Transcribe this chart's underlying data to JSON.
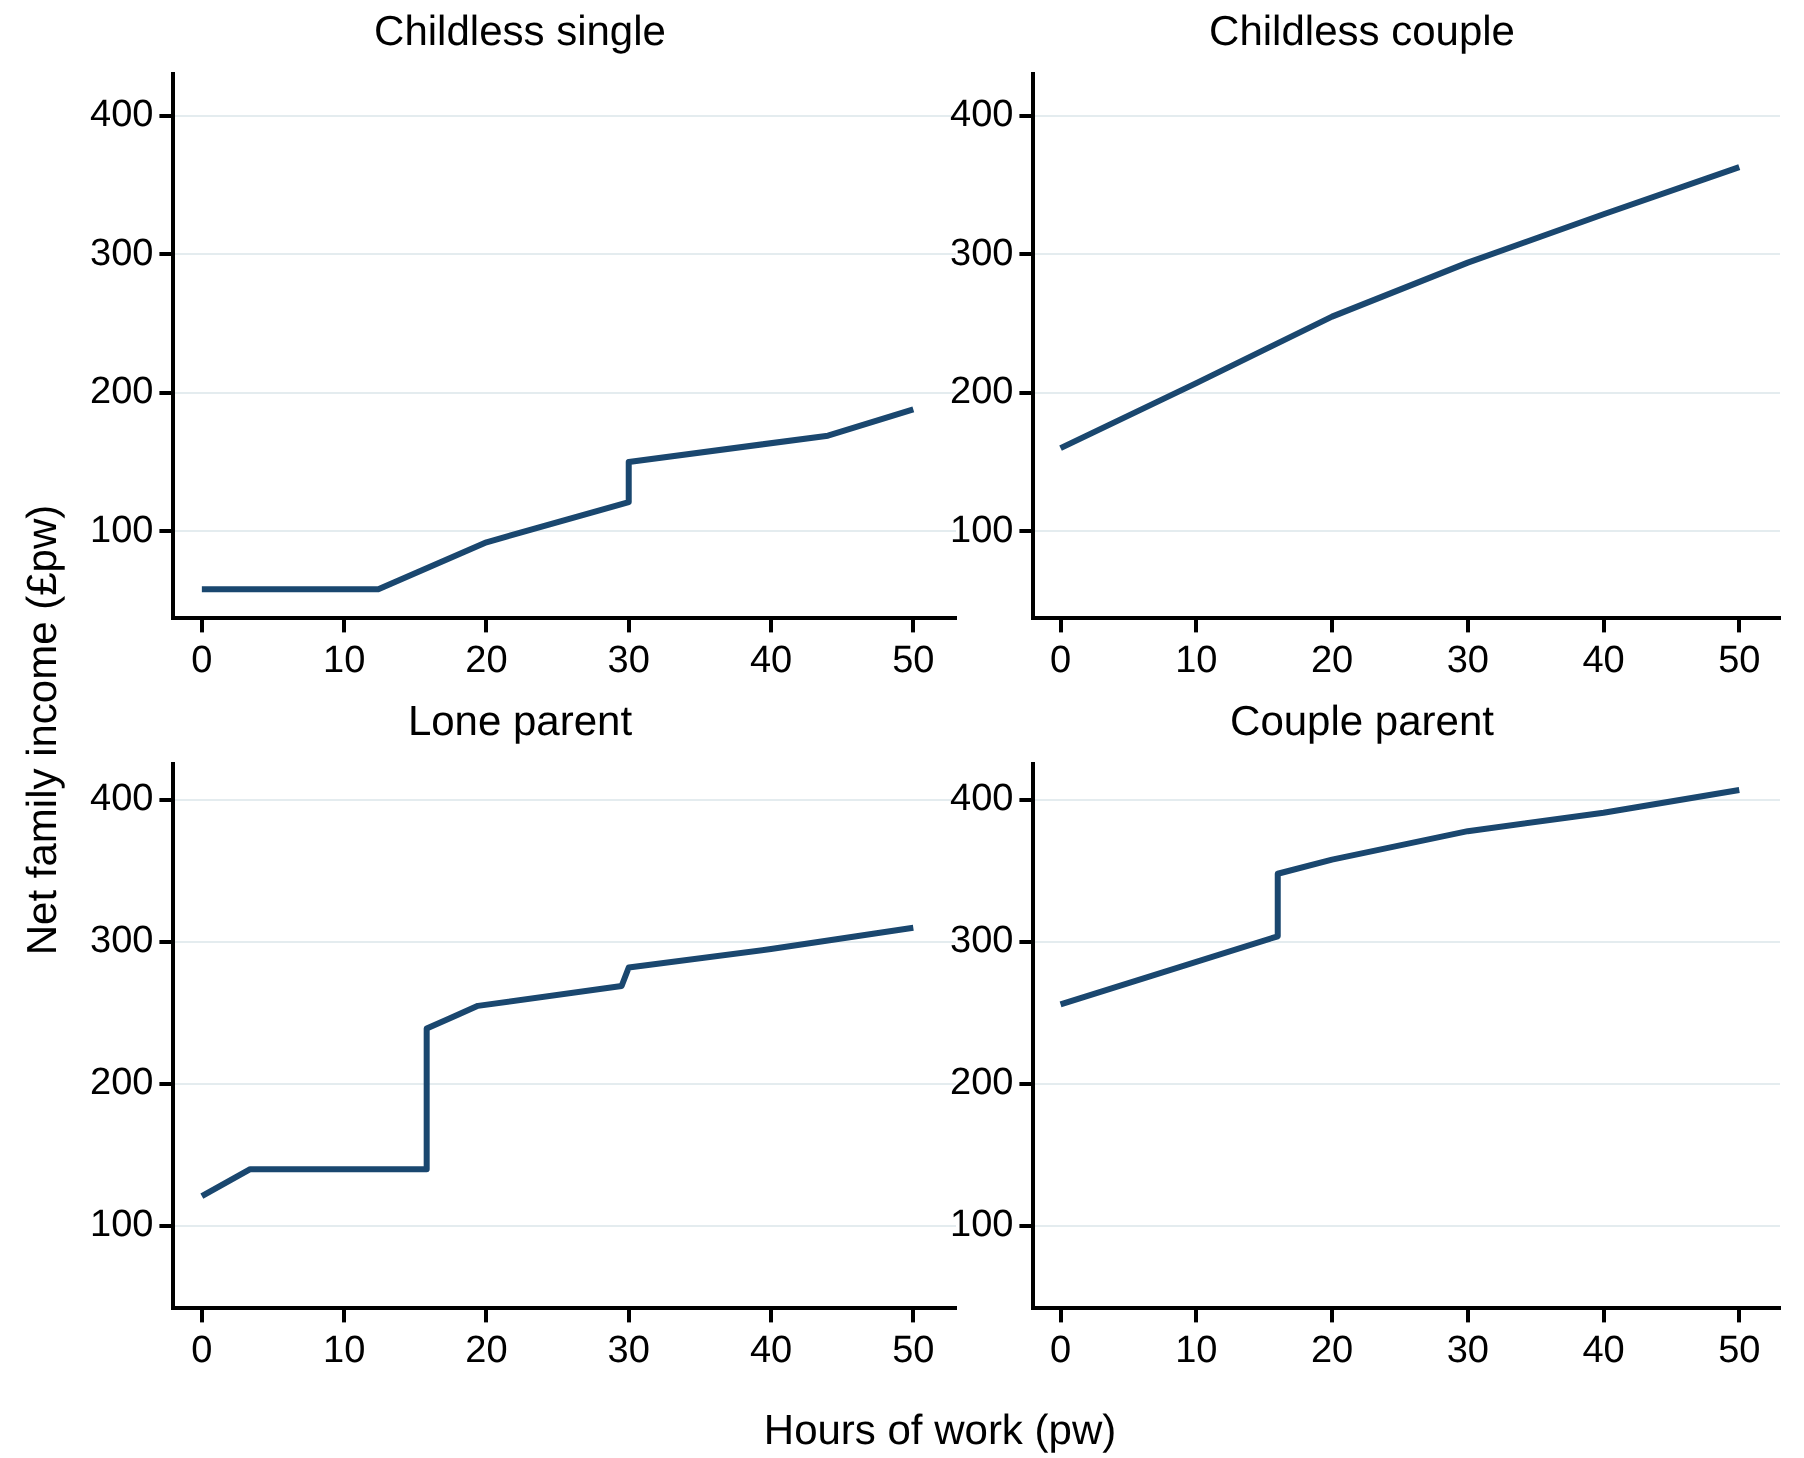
{
  "chart_data": [
    {
      "type": "line",
      "title": "Childless single",
      "ylabel": "Net family income (£pw)",
      "x": [
        0,
        12.4,
        20,
        30,
        30,
        44,
        50
      ],
      "values": [
        58,
        58,
        92,
        121,
        150,
        169,
        188
      ],
      "color": "#1a476f",
      "xlim": [
        -2,
        53
      ],
      "ylim": [
        37,
        430
      ],
      "xticks": [
        0,
        10,
        20,
        30,
        40,
        50
      ],
      "yticks": [
        100,
        200,
        300,
        400
      ],
      "grid": "y",
      "marker": "none"
    },
    {
      "type": "line",
      "title": "Childless couple",
      "x": [
        0,
        10,
        20,
        30,
        40,
        50
      ],
      "values": [
        160,
        207,
        255,
        294,
        329,
        363
      ],
      "color": "#1a476f",
      "xlim": [
        -2,
        53
      ],
      "ylim": [
        37,
        430
      ],
      "xticks": [
        0,
        10,
        20,
        30,
        40,
        50
      ],
      "yticks": [
        100,
        200,
        300,
        400
      ],
      "grid": "y",
      "marker": "none"
    },
    {
      "type": "line",
      "title": "Lone parent",
      "xlabel": "Hours of work (pw)",
      "x": [
        0,
        3.4,
        15.8,
        15.8,
        19.4,
        29.5,
        30,
        40,
        50
      ],
      "values": [
        121,
        140,
        140,
        239,
        255,
        269,
        282,
        295,
        310
      ],
      "color": "#1a476f",
      "xlim": [
        -2,
        53
      ],
      "ylim": [
        42,
        425
      ],
      "xticks": [
        0,
        10,
        20,
        30,
        40,
        50
      ],
      "yticks": [
        100,
        200,
        300,
        400
      ],
      "grid": "y",
      "marker": "none"
    },
    {
      "type": "line",
      "title": "Couple parent",
      "x": [
        0,
        16,
        16,
        20,
        30,
        40,
        50
      ],
      "values": [
        256,
        304,
        348,
        358,
        378,
        391,
        407
      ],
      "color": "#1a476f",
      "xlim": [
        -2,
        53
      ],
      "ylim": [
        42,
        425
      ],
      "xticks": [
        0,
        10,
        20,
        30,
        40,
        50
      ],
      "yticks": [
        100,
        200,
        300,
        400
      ],
      "grid": "y",
      "marker": "none"
    }
  ]
}
